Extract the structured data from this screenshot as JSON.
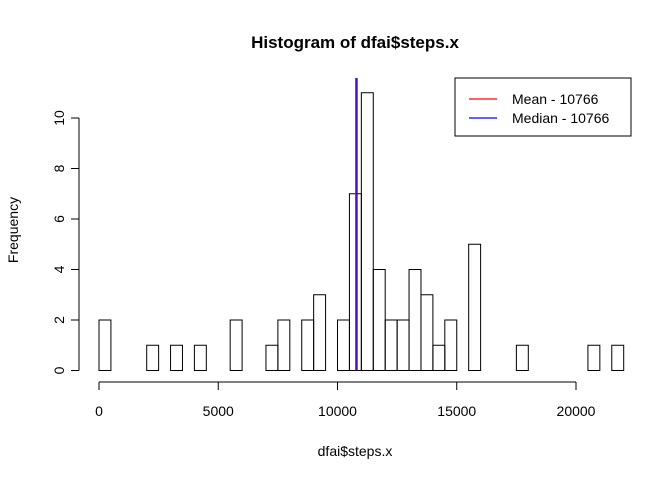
{
  "chart_data": {
    "type": "bar",
    "subtype": "histogram",
    "title": "Histogram of dfai$steps.x",
    "xlabel": "dfai$steps.x",
    "ylabel": "Frequency",
    "bin_width": 500,
    "bin_start": 0,
    "values": [
      2,
      0,
      0,
      0,
      1,
      0,
      1,
      0,
      1,
      0,
      0,
      2,
      0,
      0,
      1,
      2,
      0,
      2,
      3,
      0,
      2,
      7,
      11,
      4,
      2,
      2,
      4,
      3,
      1,
      2,
      0,
      5,
      0,
      0,
      0,
      1,
      0,
      0,
      0,
      0,
      0,
      1,
      0,
      1
    ],
    "xlim": [
      0,
      22000
    ],
    "ylim": [
      0,
      11
    ],
    "xticks": [
      0,
      5000,
      10000,
      15000,
      20000
    ],
    "yticks": [
      0,
      2,
      4,
      6,
      8,
      10
    ],
    "vlines": [
      {
        "label": "Mean - 10766",
        "x": 10766,
        "color": "#ff0000"
      },
      {
        "label": "Median - 10766",
        "x": 10766,
        "color": "#0000ff"
      }
    ],
    "legend_position": "top-right",
    "grid": false
  }
}
